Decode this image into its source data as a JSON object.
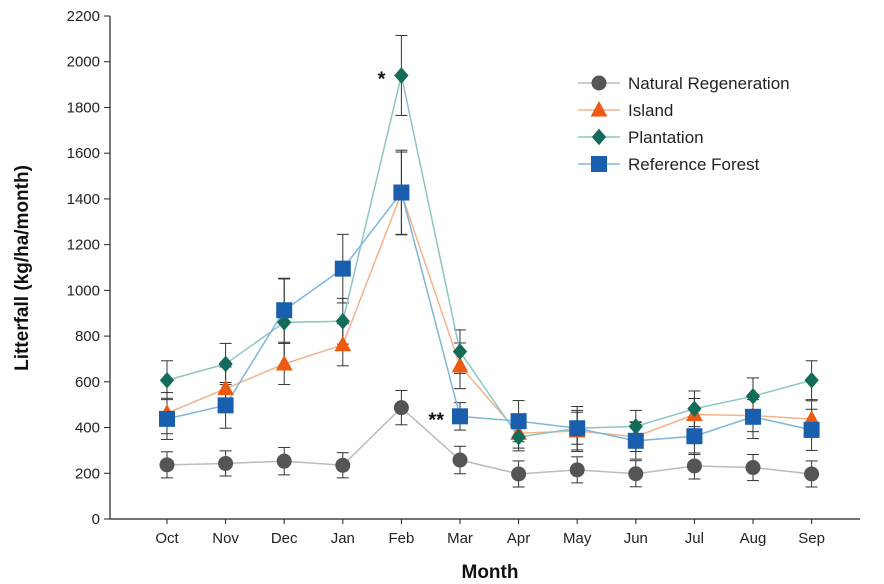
{
  "chart_data": {
    "type": "line",
    "title": "",
    "xlabel": "Month",
    "ylabel": "Litterfall (kg/ha/month)",
    "ylim": [
      0,
      2200
    ],
    "yticks": [
      0,
      200,
      400,
      600,
      800,
      1000,
      1200,
      1400,
      1600,
      1800,
      2000,
      2200
    ],
    "categories": [
      "Oct",
      "Nov",
      "Dec",
      "Jan",
      "Feb",
      "Mar",
      "Apr",
      "May",
      "Jun",
      "Jul",
      "Aug",
      "Sep"
    ],
    "grid": false,
    "legend_position": "top-right",
    "series": [
      {
        "name": "Natural Regeneration",
        "marker": "circle",
        "color": "#555555",
        "line_color": "#bbbbbb",
        "values": [
          237,
          243,
          253,
          235,
          487,
          258,
          197,
          215,
          198,
          232,
          225,
          197
        ],
        "errors": [
          57,
          55,
          60,
          55,
          75,
          60,
          57,
          57,
          57,
          57,
          57,
          57
        ]
      },
      {
        "name": "Island",
        "marker": "triangle",
        "color": "#ee5a10",
        "line_color": "#f2b38a",
        "values": [
          463,
          570,
          678,
          762,
          1425,
          670,
          375,
          385,
          360,
          457,
          452,
          437
        ],
        "errors": [
          90,
          95,
          90,
          92,
          180,
          100,
          65,
          90,
          65,
          70,
          70,
          80
        ]
      },
      {
        "name": "Plantation",
        "marker": "diamond",
        "color": "#136b5a",
        "line_color": "#8ac7c2",
        "values": [
          607,
          678,
          860,
          865,
          1940,
          732,
          358,
          397,
          405,
          482,
          537,
          607
        ],
        "errors": [
          85,
          90,
          190,
          100,
          175,
          95,
          60,
          70,
          70,
          78,
          80,
          85
        ]
      },
      {
        "name": "Reference Forest",
        "marker": "square",
        "color": "#1a5fae",
        "line_color": "#7fb6da",
        "values": [
          438,
          497,
          913,
          1095,
          1428,
          449,
          428,
          397,
          342,
          362,
          447,
          390
        ],
        "errors": [
          90,
          100,
          140,
          150,
          185,
          60,
          90,
          95,
          80,
          80,
          95,
          90
        ]
      }
    ],
    "annotations": [
      {
        "text": "*",
        "category": "Feb",
        "y": 1940
      },
      {
        "text": "**",
        "category": "Mar",
        "y": 449
      }
    ]
  }
}
